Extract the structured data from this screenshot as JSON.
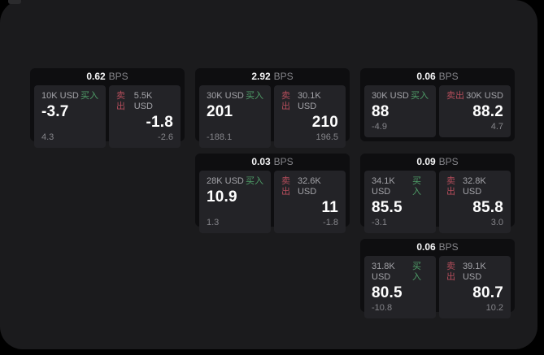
{
  "labels": {
    "bps_unit": "BPS",
    "buy": "买入",
    "sell": "卖出"
  },
  "colors": {
    "background": "#000000",
    "window": "#1b1b1d",
    "card": "#0e0e10",
    "tile": "#232327",
    "buy_green": "#4f9e68",
    "sell_red": "#b44d5b",
    "price_white": "#ffffff",
    "muted_gray": "#85858a"
  },
  "cards": [
    {
      "row": 1,
      "col": 1,
      "bps": "0.62",
      "buy": {
        "size": "10K USD",
        "price": "-3.7",
        "delta": "4.3"
      },
      "sell": {
        "size": "5.5K USD",
        "price": "-1.8",
        "delta": "-2.6"
      }
    },
    {
      "row": 1,
      "col": 2,
      "bps": "2.92",
      "buy": {
        "size": "30K USD",
        "price": "201",
        "delta": "-188.1"
      },
      "sell": {
        "size": "30.1K USD",
        "price": "210",
        "delta": "196.5"
      }
    },
    {
      "row": 1,
      "col": 3,
      "bps": "0.06",
      "buy": {
        "size": "30K USD",
        "price": "88",
        "delta": "-4.9"
      },
      "sell": {
        "size": "30K USD",
        "price": "88.2",
        "delta": "4.7"
      }
    },
    {
      "row": 2,
      "col": 2,
      "bps": "0.03",
      "buy": {
        "size": "28K USD",
        "price": "10.9",
        "delta": "1.3"
      },
      "sell": {
        "size": "32.6K USD",
        "price": "11",
        "delta": "-1.8"
      }
    },
    {
      "row": 2,
      "col": 3,
      "bps": "0.09",
      "buy": {
        "size": "34.1K USD",
        "price": "85.5",
        "delta": "-3.1"
      },
      "sell": {
        "size": "32.8K USD",
        "price": "85.8",
        "delta": "3.0"
      }
    },
    {
      "row": 3,
      "col": 3,
      "bps": "0.06",
      "buy": {
        "size": "31.8K USD",
        "price": "80.5",
        "delta": "-10.8"
      },
      "sell": {
        "size": "39.1K USD",
        "price": "80.7",
        "delta": "10.2"
      }
    }
  ]
}
